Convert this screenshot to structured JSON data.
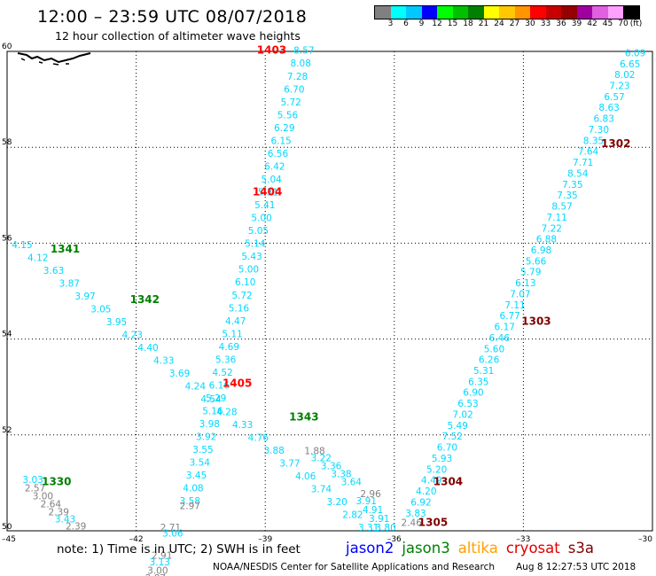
{
  "header": {
    "title": "12:00 – 23:59 UTC 08/07/2018",
    "subtitle": "12 hour collection of altimeter wave heights"
  },
  "colorbar": {
    "colors": [
      "#808080",
      "#00ffff",
      "#00c8ff",
      "#0000ff",
      "#00ff00",
      "#00c000",
      "#008000",
      "#ffff00",
      "#ffc800",
      "#ff9600",
      "#ff0000",
      "#c80000",
      "#960000",
      "#a000a0",
      "#e060e0",
      "#ffa0ff",
      "#000000"
    ],
    "labels": [
      "3",
      "6",
      "9",
      "12",
      "15",
      "18",
      "21",
      "24",
      "27",
      "30",
      "33",
      "36",
      "39",
      "42",
      "45",
      "70"
    ],
    "unit": "(ft)"
  },
  "map": {
    "lon_range": [
      -45,
      -30
    ],
    "lat_range": [
      50,
      60
    ],
    "lon_ticks": [
      -45,
      -42,
      -39,
      -36,
      -33,
      -30
    ],
    "lat_ticks": [
      50,
      52,
      54,
      56,
      58,
      60
    ],
    "lon_tick_labels": [
      "–45",
      "–42",
      "–39",
      "–36",
      "–33",
      "–30"
    ],
    "lat_tick_labels": [
      "50",
      "52",
      "54",
      "56",
      "58",
      "60"
    ],
    "passes": [
      {
        "label": "1403",
        "color": "#ff0000",
        "lon": -38.85,
        "lat": 59.95
      },
      {
        "label": "1404",
        "color": "#ff0000",
        "lon": -38.95,
        "lat": 57.0
      },
      {
        "label": "1405",
        "color": "#ff0000",
        "lon": -39.65,
        "lat": 53.0
      },
      {
        "label": "1341",
        "color": "#008000",
        "lon": -43.65,
        "lat": 55.8
      },
      {
        "label": "1342",
        "color": "#008000",
        "lon": -41.8,
        "lat": 54.75
      },
      {
        "label": "1343",
        "color": "#008000",
        "lon": -38.1,
        "lat": 52.3
      },
      {
        "label": "1330",
        "color": "#008000",
        "lon": -43.85,
        "lat": 50.95
      },
      {
        "label": "1302",
        "color": "#800000",
        "lon": -30.85,
        "lat": 58.0
      },
      {
        "label": "1303",
        "color": "#800000",
        "lon": -32.7,
        "lat": 54.3
      },
      {
        "label": "1304",
        "color": "#800000",
        "lon": -34.75,
        "lat": 50.95
      },
      {
        "label": "1305",
        "color": "#800000",
        "lon": -35.1,
        "lat": 50.1
      }
    ],
    "tracks": [
      {
        "color": "#00d8ff",
        "start": [
          -38.1,
          59.95
        ],
        "end": [
          -40.75,
          50.55
        ],
        "values": [
          "8.57",
          "8.08",
          "7.28",
          "6.70",
          "5.72",
          "5.56",
          "6.29",
          "6.15",
          "6.56",
          "6.42",
          "5.04",
          "5.31",
          "5.41",
          "5.00",
          "5.05",
          "5.14",
          "5.43",
          "5.00",
          "6.10",
          "5.72",
          "5.16",
          "4.47",
          "5.11",
          "4.69",
          "5.36",
          "4.52",
          "6.16",
          "5.29",
          "5.16",
          "3.98",
          "3.92",
          "3.55",
          "3.54",
          "3.45",
          "4.08",
          "3.58"
        ]
      },
      {
        "color": "#808080",
        "start": [
          -40.75,
          50.45
        ],
        "end": [
          -41.2,
          50.0
        ],
        "values": [
          "2.97",
          "2.71"
        ]
      },
      {
        "color": "#00d8ff",
        "start": [
          -41.15,
          49.88
        ],
        "end": [
          -41.35,
          49.55
        ],
        "values": [
          "3.06"
        ]
      },
      {
        "color": "#808080",
        "start": [
          -41.4,
          49.42
        ],
        "end": [
          -41.4,
          49.42
        ],
        "values": [
          "2.91"
        ]
      },
      {
        "color": "#00d8ff",
        "start": [
          -41.45,
          49.28
        ],
        "end": [
          -41.45,
          49.28
        ],
        "values": [
          "3.13"
        ]
      },
      {
        "color": "#808080",
        "start": [
          -41.5,
          49.1
        ],
        "end": [
          -41.55,
          48.95
        ],
        "values": [
          "3.00",
          "2.87"
        ]
      },
      {
        "color": "#00d8ff",
        "start": [
          -41.6,
          48.8
        ],
        "end": [
          -41.6,
          48.8
        ],
        "values": [
          "3.34"
        ]
      },
      {
        "color": "#00d8ff",
        "start": [
          -44.65,
          55.9
        ],
        "end": [
          -36.6,
          50.0
        ],
        "values": [
          "4.15",
          "4.12",
          "3.63",
          "3.87",
          "3.97",
          "3.05",
          "3.95",
          "4.23",
          "4.40",
          "4.33",
          "3.69",
          "4.24",
          "4.54",
          "4.28",
          "4.33",
          "4.76",
          "3.88",
          "3.77",
          "4.06",
          "3.74",
          "3.20",
          "2.82",
          "3.31"
        ]
      },
      {
        "color": "#808080",
        "start": [
          -37.85,
          51.6
        ],
        "end": [
          -37.85,
          51.6
        ],
        "values": [
          "1.88"
        ]
      },
      {
        "color": "#00d8ff",
        "start": [
          -37.7,
          51.45
        ],
        "end": [
          -37.0,
          50.95
        ],
        "values": [
          "3.22",
          "3.36",
          "3.38",
          "3.64"
        ]
      },
      {
        "color": "#808080",
        "start": [
          -36.55,
          50.7
        ],
        "end": [
          -36.55,
          50.7
        ],
        "values": [
          "2.96"
        ]
      },
      {
        "color": "#00d8ff",
        "start": [
          -36.65,
          50.55
        ],
        "end": [
          -36.2,
          50.0
        ],
        "values": [
          "3.91",
          "4.91",
          "3.91",
          "3.80"
        ]
      },
      {
        "color": "#00d8ff",
        "start": [
          -44.4,
          51.0
        ],
        "end": [
          -44.4,
          51.0
        ],
        "values": [
          "3.03"
        ]
      },
      {
        "color": "#808080",
        "start": [
          -44.35,
          50.82
        ],
        "end": [
          -43.8,
          50.32
        ],
        "values": [
          "2.57",
          "3.00",
          "2.64",
          "2.39"
        ]
      },
      {
        "color": "#00d8ff",
        "start": [
          -43.65,
          50.18
        ],
        "end": [
          -43.65,
          50.18
        ],
        "values": [
          "3.43"
        ]
      },
      {
        "color": "#808080",
        "start": [
          -43.4,
          50.03
        ],
        "end": [
          -43.4,
          50.03
        ],
        "values": [
          "2.39"
        ]
      },
      {
        "color": "#00d8ff",
        "start": [
          -30.4,
          59.9
        ],
        "end": [
          -35.5,
          50.3
        ],
        "values": [
          "6.09",
          "6.65",
          "8.02",
          "7.23",
          "6.57",
          "8.63",
          "6.83",
          "7.30",
          "8.35",
          "7.64",
          "7.71",
          "8.54",
          "7.35",
          "7.35",
          "8.57",
          "7.11",
          "7.22",
          "6.88",
          "6.98",
          "5.66",
          "5.79",
          "6.13",
          "7.07",
          "7.11",
          "6.77",
          "6.17",
          "6.46",
          "5.60",
          "6.26",
          "5.31",
          "6.35",
          "6.90",
          "6.53",
          "7.02",
          "5.49",
          "7.52",
          "6.70",
          "5.93",
          "5.20",
          "4.49",
          "4.20",
          "6.92",
          "3.83"
        ]
      },
      {
        "color": "#808080",
        "start": [
          -35.6,
          50.1
        ],
        "end": [
          -35.6,
          50.1
        ],
        "values": [
          "2.46"
        ]
      }
    ]
  },
  "footer": {
    "note": "note:  1) Time is in UTC;  2) SWH is in feet",
    "legend": [
      {
        "name": "jason2",
        "color": "#0000ff"
      },
      {
        "name": "jason3",
        "color": "#008000"
      },
      {
        "name": "altika",
        "color": "#ffa000"
      },
      {
        "name": "cryosat",
        "color": "#e00000"
      },
      {
        "name": "s3a",
        "color": "#800000"
      }
    ],
    "credit": "NOAA/NESDIS Center for Satellite Applications and Research",
    "timestamp": "Aug  8 12:27:53 UTC 2018"
  }
}
